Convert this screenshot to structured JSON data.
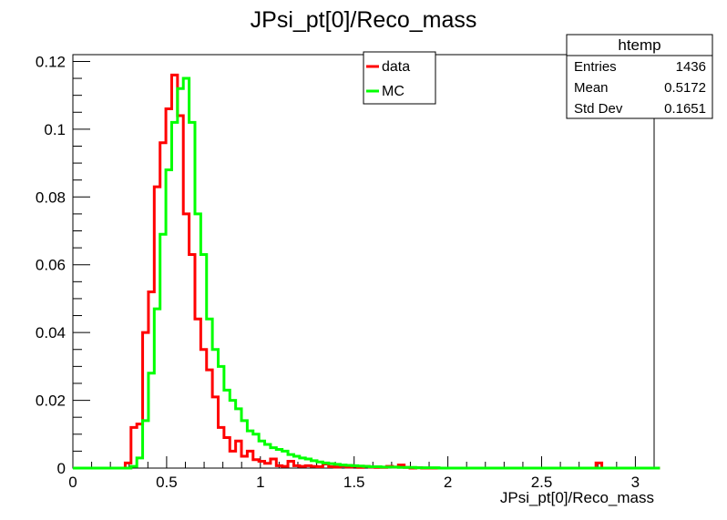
{
  "chart_data": {
    "type": "histogram",
    "title": "JPsi_pt[0]/Reco_mass",
    "xlabel": "JPsi_pt[0]/Reco_mass",
    "ylabel": "",
    "xlim": [
      0,
      3.1
    ],
    "ylim": [
      0,
      0.122
    ],
    "bin_width": 0.031,
    "grid": false,
    "x_ticks": [
      "0",
      "0.5",
      "1",
      "1.5",
      "2",
      "2.5",
      "3"
    ],
    "x_tick_values": [
      0,
      0.5,
      1,
      1.5,
      2,
      2.5,
      3
    ],
    "y_ticks": [
      "0",
      "0.02",
      "0.04",
      "0.06",
      "0.08",
      "0.1",
      "0.12"
    ],
    "y_tick_values": [
      0,
      0.02,
      0.04,
      0.06,
      0.08,
      0.1,
      0.12
    ],
    "legend_position": "top-center",
    "series": [
      {
        "name": "data",
        "color": "#ff0000",
        "values": [
          0,
          0,
          0,
          0,
          0,
          0,
          0,
          0,
          0,
          0.0015,
          0.012,
          0.013,
          0.04,
          0.052,
          0.083,
          0.096,
          0.106,
          0.116,
          0.104,
          0.075,
          0.063,
          0.044,
          0.035,
          0.029,
          0.021,
          0.012,
          0.009,
          0.005,
          0.008,
          0.0035,
          0.005,
          0.0025,
          0.002,
          0.0014,
          0.0027,
          0.0007,
          0.0005,
          0.002,
          0.0007,
          0.0005,
          0.0007,
          0.0005,
          0.0004,
          0.0012,
          0.0004,
          0.0003,
          0.0006,
          0.0003,
          0.0005,
          0.0002,
          0.0005,
          0.0003,
          0.0002,
          0.0002,
          0.0005,
          0.0003,
          0.0009,
          0.0002,
          0,
          0.0001,
          0,
          0,
          0,
          0,
          0,
          0,
          0,
          0,
          0,
          0,
          0,
          0,
          0,
          0,
          0,
          0,
          0,
          0,
          0,
          0,
          0,
          0,
          0,
          0,
          0,
          0,
          0,
          0,
          0,
          0,
          0.0015,
          0,
          0,
          0,
          0,
          0,
          0,
          0,
          0,
          0,
          0
        ]
      },
      {
        "name": "MC",
        "color": "#00ff00",
        "values": [
          0,
          0,
          0,
          0,
          0,
          0,
          0,
          0,
          0,
          0,
          0.0005,
          0.003,
          0.014,
          0.028,
          0.047,
          0.069,
          0.088,
          0.102,
          0.112,
          0.115,
          0.102,
          0.075,
          0.063,
          0.044,
          0.035,
          0.03,
          0.023,
          0.02,
          0.0175,
          0.014,
          0.011,
          0.01,
          0.008,
          0.007,
          0.006,
          0.0055,
          0.005,
          0.004,
          0.0035,
          0.003,
          0.0027,
          0.0022,
          0.0018,
          0.0015,
          0.0013,
          0.0011,
          0.0009,
          0.0008,
          0.0007,
          0.0006,
          0.0005,
          0.0004,
          0.0004,
          0.0003,
          0.0003,
          0.0003,
          0.0002,
          0.0002,
          0.0002,
          0.0001,
          0.0001,
          0.0001,
          0.0001,
          0,
          0,
          0,
          0,
          0,
          0,
          0,
          0,
          0,
          0,
          0,
          0,
          0,
          0,
          0,
          0,
          0,
          0,
          0,
          0,
          0,
          0,
          0,
          0,
          0,
          0,
          0,
          0,
          0,
          0,
          0,
          0,
          0,
          0,
          0,
          0,
          0,
          0
        ]
      }
    ],
    "stats": {
      "name": "htemp",
      "rows": [
        {
          "label": "Entries",
          "value": "1436"
        },
        {
          "label": "Mean",
          "value": "0.5172"
        },
        {
          "label": "Std Dev",
          "value": "0.1651"
        }
      ]
    }
  }
}
